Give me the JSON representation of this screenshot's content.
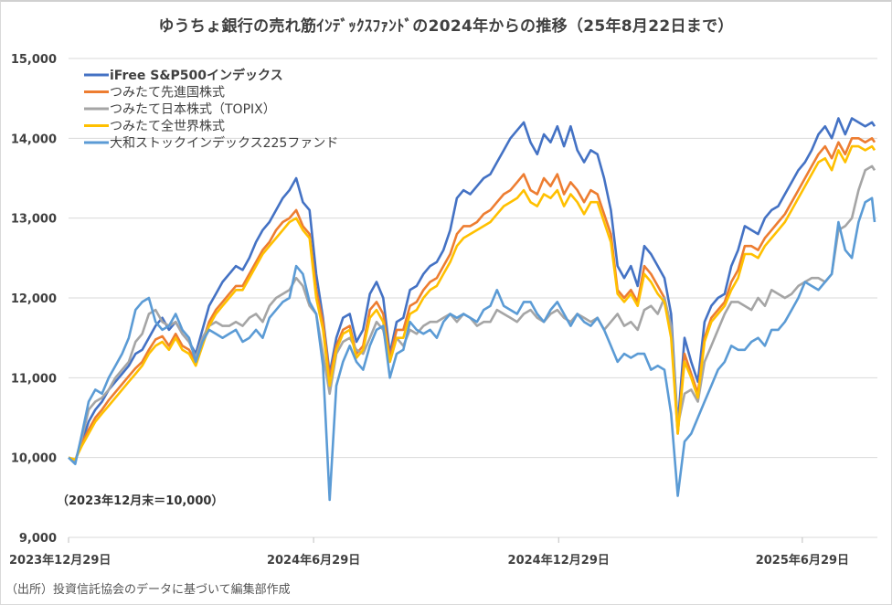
{
  "chart_data": {
    "type": "line",
    "title": "ゆうちょ銀行の売れ筋ｲﾝﾃﾞｯｸｽﾌｧﾝﾄﾞの2024年からの推移（25年8月22日まで）",
    "xlabel": "",
    "ylabel": "",
    "x_unit": "days since 2023-12-29",
    "xlim": [
      0,
      602
    ],
    "ylim": [
      9000,
      15000
    ],
    "yticks": [
      9000,
      10000,
      11000,
      12000,
      13000,
      14000,
      15000
    ],
    "ytick_labels": [
      "9,000",
      "10,000",
      "11,000",
      "12,000",
      "13,000",
      "14,000",
      "15,000"
    ],
    "xticks": [
      0,
      183,
      366,
      548
    ],
    "xtick_labels": [
      "2023年12月29日",
      "2024年6月29日",
      "2024年12月29日",
      "2025年6月29日"
    ],
    "grid": true,
    "legend_position": "top-left",
    "annotation": "（2023年12月末＝10,000）",
    "x": [
      0,
      5,
      10,
      15,
      20,
      25,
      30,
      35,
      40,
      45,
      50,
      55,
      60,
      65,
      70,
      75,
      80,
      85,
      90,
      95,
      100,
      105,
      110,
      115,
      120,
      125,
      130,
      135,
      140,
      145,
      150,
      155,
      160,
      165,
      170,
      175,
      180,
      185,
      190,
      195,
      200,
      205,
      210,
      215,
      220,
      225,
      230,
      235,
      240,
      245,
      250,
      255,
      260,
      265,
      270,
      275,
      280,
      285,
      290,
      295,
      300,
      305,
      310,
      315,
      320,
      325,
      330,
      335,
      340,
      345,
      350,
      355,
      360,
      365,
      370,
      375,
      380,
      385,
      390,
      395,
      400,
      405,
      410,
      415,
      420,
      425,
      430,
      435,
      440,
      445,
      450,
      455,
      460,
      465,
      470,
      475,
      480,
      485,
      490,
      495,
      500,
      505,
      510,
      515,
      520,
      525,
      530,
      535,
      540,
      545,
      550,
      555,
      560,
      565,
      570,
      575,
      580,
      585,
      590,
      595,
      600,
      602
    ],
    "series": [
      {
        "name": "iFree S&P500インデックス",
        "color": "#4472C4",
        "values": [
          10000,
          9960,
          10200,
          10450,
          10600,
          10700,
          10850,
          10950,
          11050,
          11150,
          11300,
          11350,
          11500,
          11650,
          11750,
          11600,
          11700,
          11550,
          11450,
          11300,
          11600,
          11900,
          12050,
          12200,
          12300,
          12400,
          12350,
          12500,
          12700,
          12850,
          12950,
          13100,
          13250,
          13350,
          13500,
          13200,
          13100,
          12300,
          11750,
          11050,
          11500,
          11750,
          11800,
          11450,
          11600,
          12050,
          12200,
          12000,
          11300,
          11700,
          11750,
          12100,
          12150,
          12300,
          12400,
          12450,
          12600,
          12850,
          13250,
          13350,
          13300,
          13400,
          13500,
          13550,
          13700,
          13850,
          14000,
          14100,
          14200,
          13950,
          13800,
          14050,
          13950,
          14150,
          13900,
          14150,
          13850,
          13700,
          13850,
          13800,
          13500,
          13100,
          12400,
          12250,
          12400,
          12150,
          12650,
          12550,
          12400,
          12250,
          11800,
          10400,
          11500,
          11200,
          10950,
          11700,
          11900,
          12000,
          12050,
          12400,
          12600,
          12900,
          12850,
          12800,
          13000,
          13100,
          13150,
          13300,
          13450,
          13600,
          13700,
          13850,
          14050,
          14150,
          14000,
          14250,
          14050,
          14250,
          14200,
          14150,
          14200,
          14150
        ]
      },
      {
        "name": "つみたて先進国株式",
        "color": "#ED7D31",
        "values": [
          10000,
          9970,
          10180,
          10350,
          10500,
          10600,
          10720,
          10820,
          10920,
          11020,
          11120,
          11200,
          11350,
          11480,
          11520,
          11400,
          11550,
          11400,
          11350,
          11200,
          11450,
          11700,
          11850,
          11950,
          12050,
          12150,
          12150,
          12300,
          12450,
          12600,
          12700,
          12850,
          12950,
          13000,
          13100,
          12900,
          12800,
          12100,
          11700,
          11000,
          11400,
          11600,
          11650,
          11300,
          11400,
          11850,
          11950,
          11800,
          11250,
          11600,
          11600,
          11900,
          11950,
          12100,
          12200,
          12250,
          12400,
          12550,
          12800,
          12900,
          12900,
          12950,
          13050,
          13100,
          13200,
          13300,
          13350,
          13450,
          13550,
          13350,
          13300,
          13500,
          13400,
          13550,
          13300,
          13450,
          13350,
          13200,
          13350,
          13300,
          13050,
          12800,
          12100,
          12000,
          12100,
          11950,
          12400,
          12300,
          12150,
          12000,
          11600,
          10300,
          11300,
          11050,
          10800,
          11500,
          11750,
          11850,
          11950,
          12200,
          12350,
          12650,
          12650,
          12600,
          12750,
          12850,
          12950,
          13050,
          13200,
          13350,
          13500,
          13650,
          13800,
          13900,
          13750,
          13950,
          13800,
          14000,
          14000,
          13950,
          14000,
          13950
        ]
      },
      {
        "name": "つみたて日本株式（TOPIX）",
        "color": "#A5A5A5",
        "values": [
          10000,
          9950,
          10250,
          10600,
          10700,
          10750,
          10850,
          11000,
          11100,
          11200,
          11450,
          11550,
          11800,
          11850,
          11700,
          11650,
          11700,
          11550,
          11450,
          11250,
          11500,
          11650,
          11700,
          11650,
          11650,
          11700,
          11650,
          11750,
          11800,
          11700,
          11900,
          12000,
          12050,
          12100,
          12250,
          12150,
          11900,
          11800,
          11300,
          10800,
          11300,
          11450,
          11500,
          11350,
          11300,
          11500,
          11700,
          11600,
          11200,
          11500,
          11400,
          11600,
          11550,
          11650,
          11700,
          11700,
          11750,
          11800,
          11700,
          11800,
          11750,
          11650,
          11700,
          11700,
          11850,
          11800,
          11750,
          11700,
          11800,
          11850,
          11750,
          11700,
          11800,
          11850,
          11750,
          11700,
          11800,
          11750,
          11700,
          11750,
          11600,
          11700,
          11800,
          11650,
          11700,
          11600,
          11850,
          11900,
          11800,
          12000,
          11650,
          10400,
          10800,
          10850,
          10700,
          11200,
          11400,
          11600,
          11800,
          11950,
          11950,
          11900,
          11850,
          12000,
          11900,
          12100,
          12050,
          12000,
          12050,
          12150,
          12200,
          12250,
          12250,
          12200,
          12300,
          12850,
          12900,
          13000,
          13350,
          13600,
          13650,
          13600
        ]
      },
      {
        "name": "つみたて全世界株式",
        "color": "#FFC000",
        "values": [
          10000,
          9975,
          10150,
          10300,
          10450,
          10550,
          10650,
          10750,
          10850,
          10950,
          11050,
          11150,
          11300,
          11400,
          11450,
          11350,
          11500,
          11350,
          11300,
          11150,
          11400,
          11650,
          11800,
          11900,
          12000,
          12100,
          12100,
          12250,
          12400,
          12550,
          12650,
          12750,
          12850,
          12950,
          13000,
          12850,
          12750,
          12000,
          11600,
          10900,
          11350,
          11550,
          11600,
          11250,
          11350,
          11750,
          11850,
          11700,
          11200,
          11500,
          11500,
          11800,
          11850,
          12000,
          12100,
          12150,
          12300,
          12450,
          12650,
          12750,
          12800,
          12850,
          12900,
          12950,
          13050,
          13150,
          13200,
          13250,
          13350,
          13200,
          13150,
          13300,
          13250,
          13350,
          13150,
          13300,
          13200,
          13050,
          13200,
          13200,
          12950,
          12700,
          12050,
          11950,
          12050,
          11900,
          12300,
          12200,
          12050,
          11950,
          11500,
          10300,
          11200,
          11000,
          10750,
          11450,
          11700,
          11800,
          11900,
          12100,
          12250,
          12550,
          12550,
          12500,
          12650,
          12750,
          12850,
          12950,
          13100,
          13250,
          13400,
          13550,
          13700,
          13750,
          13600,
          13850,
          13700,
          13900,
          13900,
          13850,
          13900,
          13850
        ]
      },
      {
        "name": "大和ストックインデックス225ファンド",
        "color": "#5B9BD5",
        "values": [
          10000,
          9920,
          10300,
          10700,
          10850,
          10800,
          11000,
          11150,
          11300,
          11500,
          11850,
          11950,
          12000,
          11700,
          11600,
          11650,
          11800,
          11600,
          11500,
          11200,
          11450,
          11600,
          11550,
          11500,
          11550,
          11600,
          11450,
          11500,
          11600,
          11500,
          11750,
          11850,
          11950,
          12000,
          12400,
          12300,
          11950,
          11800,
          11150,
          9470,
          10900,
          11200,
          11400,
          11200,
          11100,
          11400,
          11600,
          11650,
          11000,
          11300,
          11350,
          11700,
          11600,
          11550,
          11600,
          11500,
          11700,
          11800,
          11750,
          11800,
          11750,
          11700,
          11850,
          11900,
          12100,
          11900,
          11850,
          11800,
          11950,
          11950,
          11800,
          11700,
          11850,
          11950,
          11800,
          11650,
          11800,
          11700,
          11650,
          11750,
          11600,
          11400,
          11200,
          11300,
          11250,
          11300,
          11300,
          11100,
          11150,
          11100,
          10550,
          9520,
          10200,
          10300,
          10500,
          10700,
          10900,
          11100,
          11200,
          11400,
          11350,
          11350,
          11450,
          11500,
          11400,
          11600,
          11600,
          11700,
          11850,
          12000,
          12200,
          12150,
          12100,
          12200,
          12300,
          12950,
          12600,
          12500,
          12950,
          13200,
          13250,
          12950
        ]
      }
    ]
  },
  "source_note": "（出所）投資信託協会のデータに基づいて編集部作成"
}
